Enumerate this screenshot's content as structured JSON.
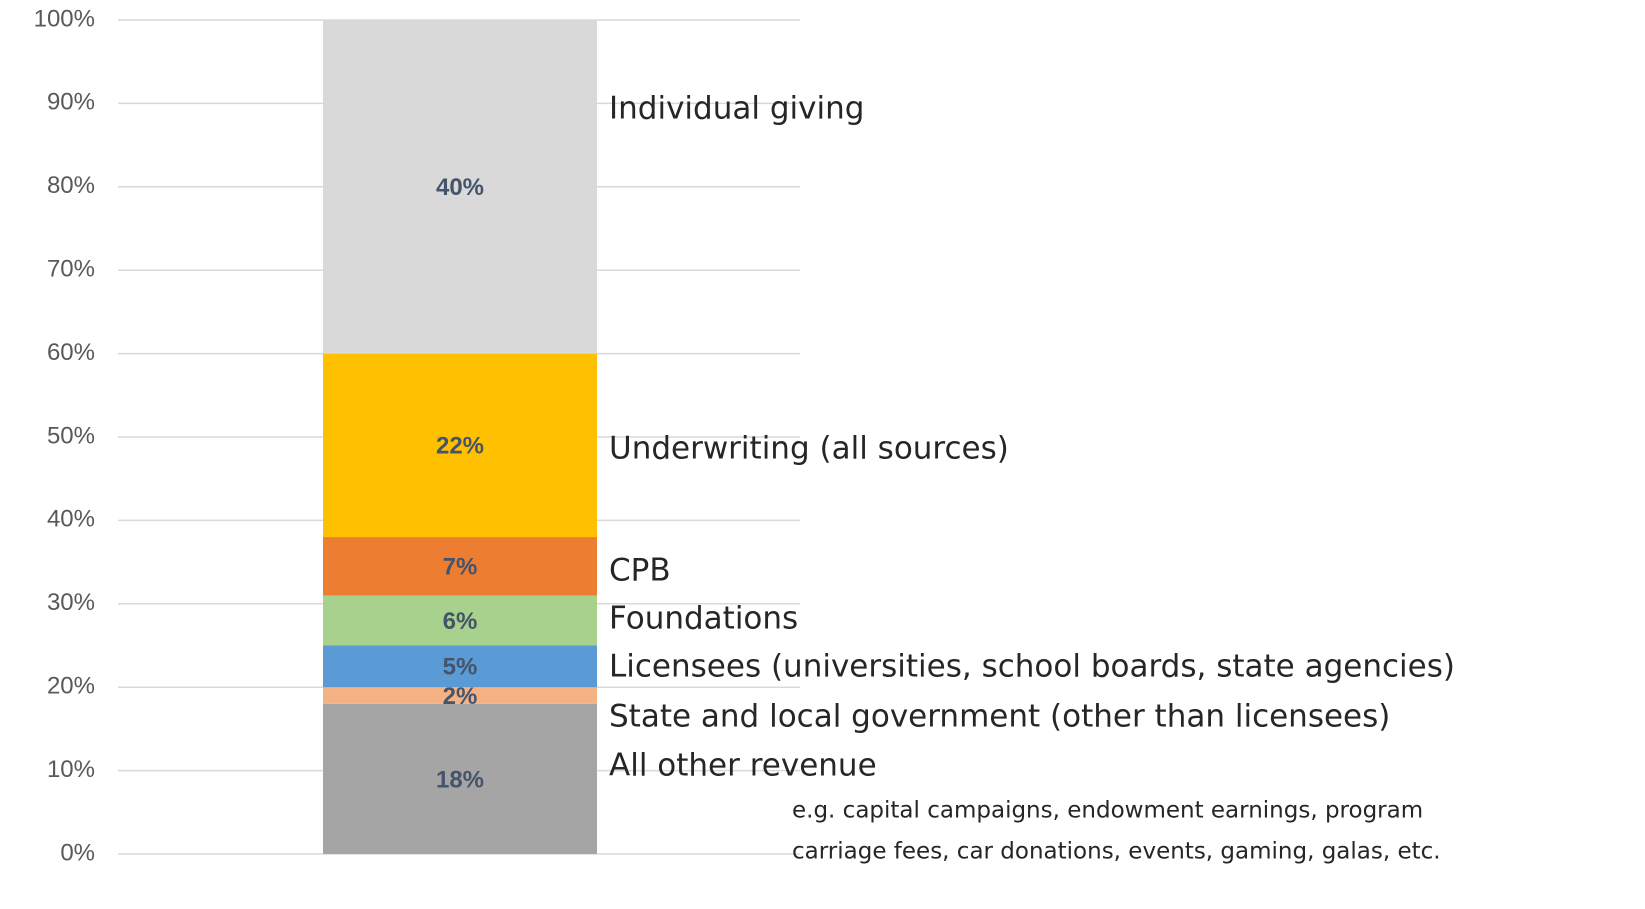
{
  "chart_data": {
    "type": "stacked_bar",
    "categories": [
      null
    ],
    "series": [
      {
        "name": "All other revenue",
        "color": "#a5a5a5",
        "values": [
          18
        ],
        "value_labels": [
          "18%"
        ]
      },
      {
        "name": "State and local government (other than licensees)",
        "color": "#f4b183",
        "values": [
          2
        ],
        "value_labels": [
          "2%"
        ]
      },
      {
        "name": "Licensees (universities, school boards, state agencies)",
        "color": "#5b9bd5",
        "values": [
          5
        ],
        "value_labels": [
          "5%"
        ]
      },
      {
        "name": "Foundations",
        "color": "#a9d18e",
        "values": [
          6
        ],
        "value_labels": [
          "6%"
        ]
      },
      {
        "name": "CPB",
        "color": "#ed7d31",
        "values": [
          7
        ],
        "value_labels": [
          "7%"
        ]
      },
      {
        "name": "Underwriting (all sources)",
        "color": "#ffc000",
        "values": [
          22
        ],
        "value_labels": [
          "22%"
        ]
      },
      {
        "name": "Individual giving",
        "color": "#d9d9d9",
        "values": [
          40
        ],
        "value_labels": [
          "40%"
        ]
      }
    ],
    "ylim": [
      0,
      100
    ],
    "yticks": [
      {
        "value": 0,
        "label": "0%"
      },
      {
        "value": 10,
        "label": "10%"
      },
      {
        "value": 20,
        "label": "20%"
      },
      {
        "value": 30,
        "label": "30%"
      },
      {
        "value": 40,
        "label": "40%"
      },
      {
        "value": 50,
        "label": "50%"
      },
      {
        "value": 60,
        "label": "60%"
      },
      {
        "value": 70,
        "label": "70%"
      },
      {
        "value": 80,
        "label": "80%"
      },
      {
        "value": 90,
        "label": "90%"
      },
      {
        "value": 100,
        "label": "100%"
      }
    ],
    "grid": true,
    "annotation": [
      "e.g. capital campaigns, endowment earnings, program",
      "carriage fees, car donations, events, gaming, galas, etc."
    ]
  }
}
